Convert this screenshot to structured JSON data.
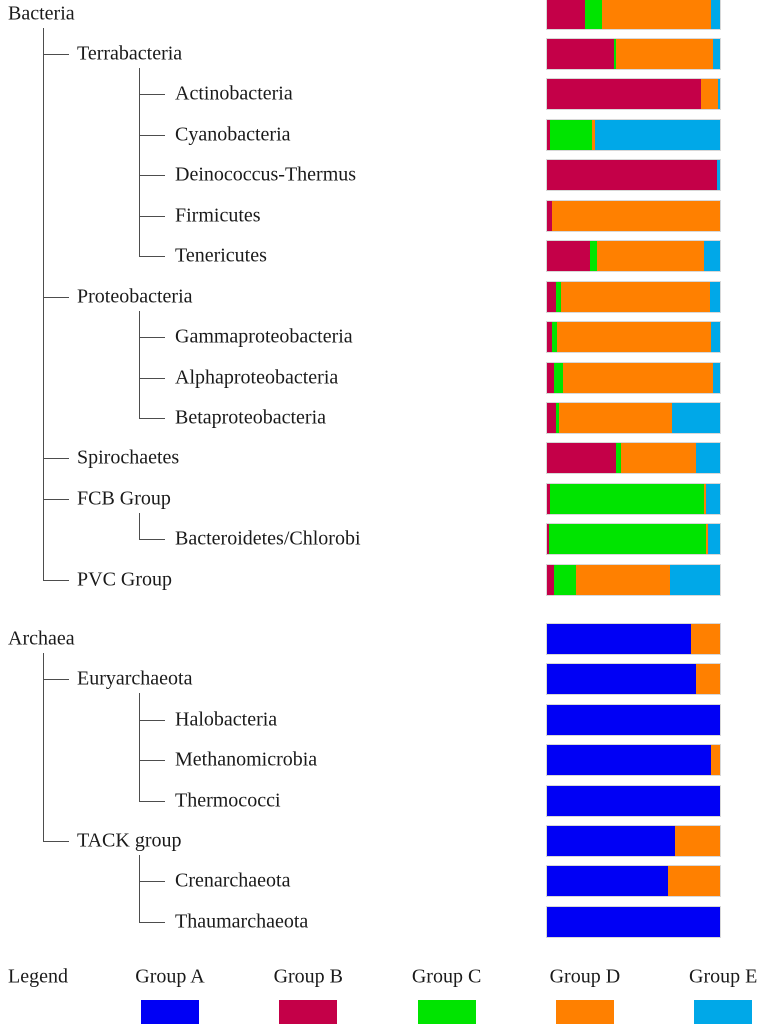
{
  "legend": {
    "title": "Legend",
    "items": [
      {
        "label": "Group A",
        "color": "#0000F5"
      },
      {
        "label": "Group B",
        "color": "#C40048"
      },
      {
        "label": "Group C",
        "color": "#00E400"
      },
      {
        "label": "Group D",
        "color": "#FF8000"
      },
      {
        "label": "Group E",
        "color": "#00A8E8"
      }
    ]
  },
  "chart_data": {
    "type": "bar",
    "variant": "stacked-horizontal",
    "units": "percent-of-row",
    "xlim": [
      0,
      100
    ],
    "grid": false,
    "legend_position": "bottom",
    "tree": "phylogeny shown as indented labels with connector lines",
    "series": [
      "Group A",
      "Group B",
      "Group C",
      "Group D",
      "Group E"
    ],
    "series_colors": [
      "#0000F5",
      "#C40048",
      "#00E400",
      "#FF8000",
      "#00A8E8"
    ],
    "rows": [
      {
        "label": "Bacteria",
        "depth": 0,
        "values": [
          0,
          22,
          10,
          63,
          5
        ]
      },
      {
        "label": "Terrabacteria",
        "depth": 1,
        "values": [
          0,
          39,
          1,
          56,
          4
        ]
      },
      {
        "label": "Actinobacteria",
        "depth": 2,
        "values": [
          0,
          89,
          0,
          10,
          1
        ]
      },
      {
        "label": "Cyanobacteria",
        "depth": 2,
        "values": [
          0,
          2,
          24,
          2,
          72
        ]
      },
      {
        "label": "Deinococcus-Thermus",
        "depth": 2,
        "values": [
          0,
          98,
          0,
          0,
          2
        ]
      },
      {
        "label": "Firmicutes",
        "depth": 2,
        "values": [
          0,
          3,
          0,
          97,
          0
        ]
      },
      {
        "label": "Tenericutes",
        "depth": 2,
        "values": [
          0,
          25,
          4,
          62,
          9
        ]
      },
      {
        "label": "Proteobacteria",
        "depth": 1,
        "values": [
          0,
          5,
          3,
          86,
          6
        ]
      },
      {
        "label": "Gammaproteobacteria",
        "depth": 2,
        "values": [
          0,
          3,
          3,
          89,
          5
        ]
      },
      {
        "label": "Alphaproteobacteria",
        "depth": 2,
        "values": [
          0,
          4,
          5,
          87,
          4
        ]
      },
      {
        "label": "Betaproteobacteria",
        "depth": 2,
        "values": [
          0,
          5,
          2,
          65,
          28
        ]
      },
      {
        "label": "Spirochaetes",
        "depth": 1,
        "values": [
          0,
          40,
          3,
          43,
          14
        ]
      },
      {
        "label": "FCB Group",
        "depth": 1,
        "values": [
          0,
          2,
          89,
          1,
          8
        ]
      },
      {
        "label": "Bacteroidetes/Chlorobi",
        "depth": 2,
        "values": [
          0,
          1,
          91,
          1,
          7
        ]
      },
      {
        "label": "PVC Group",
        "depth": 1,
        "values": [
          0,
          4,
          13,
          54,
          29
        ]
      },
      {
        "label": "Archaea",
        "depth": 0,
        "values": [
          83,
          0,
          0,
          17,
          0
        ]
      },
      {
        "label": "Euryarchaeota",
        "depth": 1,
        "values": [
          86,
          0,
          0,
          14,
          0
        ]
      },
      {
        "label": "Halobacteria",
        "depth": 2,
        "values": [
          100,
          0,
          0,
          0,
          0
        ]
      },
      {
        "label": "Methanomicrobia",
        "depth": 2,
        "values": [
          95,
          0,
          0,
          5,
          0
        ]
      },
      {
        "label": "Thermococci",
        "depth": 2,
        "values": [
          100,
          0,
          0,
          0,
          0
        ]
      },
      {
        "label": "TACK group",
        "depth": 1,
        "values": [
          74,
          0,
          0,
          26,
          0
        ]
      },
      {
        "label": "Crenarchaeota",
        "depth": 2,
        "values": [
          70,
          0,
          0,
          30,
          0
        ]
      },
      {
        "label": "Thaumarchaeota",
        "depth": 2,
        "values": [
          100,
          0,
          0,
          0,
          0
        ]
      }
    ]
  }
}
